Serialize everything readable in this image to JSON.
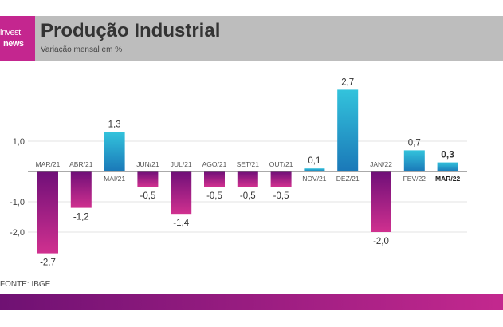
{
  "header": {
    "logo_line1": "invest",
    "logo_line2": "news",
    "title": "Produção Industrial",
    "subtitle": "Variação mensal em %"
  },
  "source": "FONTE: IBGE",
  "chart_data": {
    "type": "bar",
    "title": "Produção Industrial",
    "subtitle": "Variação mensal em %",
    "categories": [
      "MAR/21",
      "ABR/21",
      "MAI/21",
      "JUN/21",
      "JUL/21",
      "AGO/21",
      "SET/21",
      "OUT/21",
      "NOV/21",
      "DEZ/21",
      "JAN/22",
      "FEV/22",
      "MAR/22"
    ],
    "values": [
      -2.7,
      -1.2,
      1.3,
      -0.5,
      -1.4,
      -0.5,
      -0.5,
      -0.5,
      0.1,
      2.7,
      -2.0,
      0.7,
      0.3
    ],
    "value_labels": [
      "-2,7",
      "-1,2",
      "1,3",
      "-0,5",
      "-1,4",
      "-0,5",
      "-0,5",
      "-0,5",
      "0,1",
      "2,7",
      "-2,0",
      "0,7",
      "0,3"
    ],
    "yticks": [
      1.0,
      -1.0,
      -2.0
    ],
    "ytick_labels": [
      "1,0",
      "-1,0",
      "-2,0"
    ],
    "grid": true,
    "highlighted": "MAR/22",
    "colors": {
      "positive": [
        "#33c3dc",
        "#1a78b8"
      ],
      "negative": [
        "#6f0f78",
        "#d0308f"
      ]
    }
  }
}
